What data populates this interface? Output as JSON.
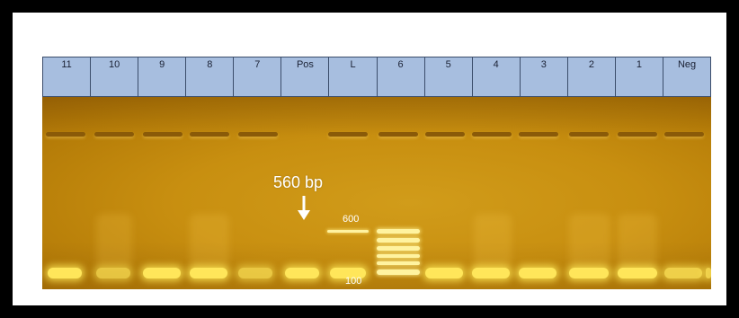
{
  "lanes": [
    "11",
    "10",
    "9",
    "8",
    "7",
    "Pos",
    "L",
    "6",
    "5",
    "4",
    "3",
    "2",
    "1",
    "Neg"
  ],
  "band_annotation": "560 bp",
  "ladder_labels": {
    "top": "600",
    "bottom": "100"
  },
  "colors": {
    "gel": "#c88f10",
    "header": "#a7bedf",
    "band": "#ffe65a",
    "frame_border": "#000000"
  },
  "icons": {
    "arrow": "arrow-down-icon"
  }
}
